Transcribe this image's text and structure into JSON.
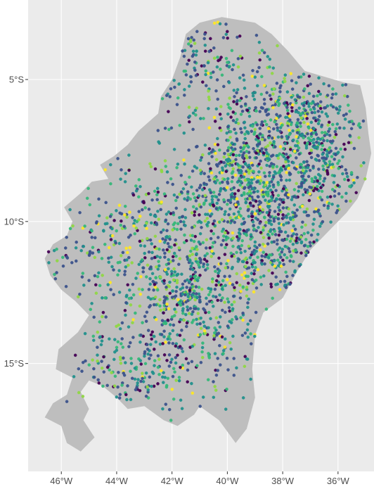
{
  "chart_data": {
    "type": "scatter",
    "title": "",
    "xlabel": "",
    "ylabel": "",
    "xlim": [
      -47.2,
      -34.7
    ],
    "ylim": [
      -18.8,
      -2.2
    ],
    "grid": true,
    "legend": "none",
    "x_ticks": [
      {
        "value": -46,
        "label": "46°W"
      },
      {
        "value": -44,
        "label": "44°W"
      },
      {
        "value": -42,
        "label": "42°W"
      },
      {
        "value": -40,
        "label": "40°W"
      },
      {
        "value": -38,
        "label": "38°W"
      },
      {
        "value": -36,
        "label": "36°W"
      }
    ],
    "y_ticks": [
      {
        "value": -5,
        "label": "5°S"
      },
      {
        "value": -10,
        "label": "10°S"
      },
      {
        "value": -15,
        "label": "15°S"
      }
    ],
    "region_outline_lonlat": [
      [
        -40.2,
        -2.8
      ],
      [
        -39.0,
        -3.0
      ],
      [
        -38.4,
        -3.4
      ],
      [
        -37.8,
        -4.0
      ],
      [
        -37.2,
        -4.7
      ],
      [
        -35.8,
        -5.1
      ],
      [
        -35.2,
        -5.2
      ],
      [
        -35.0,
        -6.0
      ],
      [
        -34.9,
        -6.9
      ],
      [
        -34.8,
        -7.6
      ],
      [
        -35.0,
        -8.5
      ],
      [
        -35.3,
        -9.2
      ],
      [
        -35.7,
        -9.7
      ],
      [
        -36.3,
        -10.3
      ],
      [
        -37.0,
        -11.0
      ],
      [
        -37.5,
        -11.8
      ],
      [
        -38.0,
        -12.7
      ],
      [
        -38.7,
        -13.2
      ],
      [
        -39.0,
        -14.0
      ],
      [
        -39.1,
        -15.2
      ],
      [
        -39.0,
        -16.2
      ],
      [
        -39.3,
        -17.3
      ],
      [
        -39.7,
        -17.8
      ],
      [
        -40.3,
        -17.0
      ],
      [
        -41.0,
        -16.5
      ],
      [
        -41.2,
        -16.8
      ],
      [
        -41.8,
        -17.2
      ],
      [
        -42.3,
        -17.0
      ],
      [
        -43.0,
        -16.5
      ],
      [
        -43.6,
        -16.6
      ],
      [
        -44.0,
        -16.2
      ],
      [
        -44.5,
        -15.8
      ],
      [
        -45.0,
        -15.6
      ],
      [
        -45.3,
        -16.0
      ],
      [
        -45.0,
        -16.6
      ],
      [
        -45.2,
        -17.0
      ],
      [
        -44.8,
        -17.6
      ],
      [
        -45.3,
        -18.1
      ],
      [
        -45.8,
        -17.8
      ],
      [
        -46.0,
        -17.2
      ],
      [
        -46.6,
        -16.9
      ],
      [
        -46.3,
        -16.4
      ],
      [
        -45.8,
        -16.1
      ],
      [
        -45.6,
        -15.5
      ],
      [
        -46.2,
        -15.2
      ],
      [
        -46.1,
        -14.5
      ],
      [
        -45.4,
        -13.9
      ],
      [
        -45.0,
        -13.3
      ],
      [
        -45.5,
        -12.8
      ],
      [
        -46.0,
        -12.4
      ],
      [
        -46.4,
        -11.9
      ],
      [
        -46.6,
        -11.3
      ],
      [
        -46.3,
        -10.8
      ],
      [
        -45.8,
        -10.5
      ],
      [
        -45.6,
        -10.0
      ],
      [
        -45.9,
        -9.5
      ],
      [
        -45.3,
        -9.0
      ],
      [
        -44.9,
        -8.6
      ],
      [
        -44.3,
        -8.5
      ],
      [
        -44.6,
        -8.0
      ],
      [
        -44.1,
        -7.7
      ],
      [
        -43.6,
        -7.3
      ],
      [
        -43.2,
        -6.8
      ],
      [
        -42.5,
        -6.2
      ],
      [
        -42.4,
        -5.6
      ],
      [
        -42.0,
        -5.0
      ],
      [
        -41.7,
        -4.2
      ],
      [
        -41.5,
        -3.4
      ],
      [
        -41.0,
        -3.0
      ],
      [
        -40.2,
        -2.8
      ]
    ],
    "point_colors": [
      "#440154",
      "#3b528b",
      "#21908c",
      "#35b779",
      "#8fd744",
      "#fde725"
    ],
    "clusters": [
      {
        "center": [
          -37.9,
          -8.6
        ],
        "spread": [
          1.4,
          1.5
        ],
        "count": 620
      },
      {
        "center": [
          -39.5,
          -8.4
        ],
        "spread": [
          0.9,
          1.1
        ],
        "count": 260
      },
      {
        "center": [
          -36.8,
          -6.8
        ],
        "spread": [
          0.8,
          0.9
        ],
        "count": 220
      },
      {
        "center": [
          -38.6,
          -5.8
        ],
        "spread": [
          1.3,
          1.0
        ],
        "count": 160
      },
      {
        "center": [
          -41.8,
          -12.6
        ],
        "spread": [
          0.8,
          1.0
        ],
        "count": 220
      },
      {
        "center": [
          -40.2,
          -13.0
        ],
        "spread": [
          0.9,
          1.3
        ],
        "count": 160
      },
      {
        "center": [
          -42.0,
          -14.8
        ],
        "spread": [
          1.4,
          1.2
        ],
        "count": 160
      },
      {
        "center": [
          -42.5,
          -10.4
        ],
        "spread": [
          1.6,
          1.5
        ],
        "count": 260
      },
      {
        "center": [
          -40.0,
          -10.0
        ],
        "spread": [
          1.4,
          1.4
        ],
        "count": 200
      },
      {
        "center": [
          -44.4,
          -11.0
        ],
        "spread": [
          1.5,
          1.4
        ],
        "count": 140
      },
      {
        "center": [
          -41.2,
          -4.2
        ],
        "spread": [
          1.0,
          0.9
        ],
        "count": 110
      },
      {
        "center": [
          -38.0,
          -11.4
        ],
        "spread": [
          0.9,
          0.9
        ],
        "count": 120
      },
      {
        "center": [
          -43.8,
          -15.4
        ],
        "spread": [
          1.1,
          0.8
        ],
        "count": 90
      }
    ]
  }
}
